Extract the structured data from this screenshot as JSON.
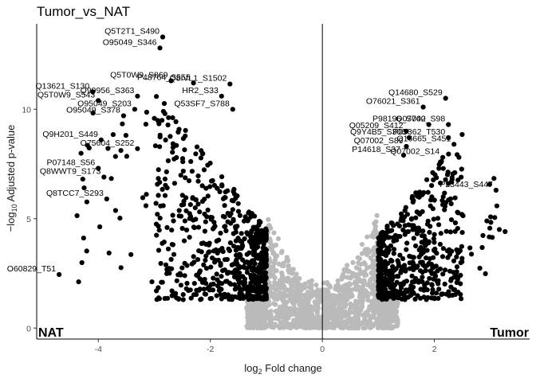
{
  "chart_data": {
    "type": "scatter",
    "title": "Tumor_vs_NAT",
    "xlabel": "log2 Fold change",
    "ylabel": "-log10 Adjusted p-value",
    "xlim": [
      -5.1,
      3.7
    ],
    "ylim": [
      -0.5,
      13.9
    ],
    "x_ticks": [
      -4,
      -2,
      0,
      2
    ],
    "x_tick_labels": [
      "-4",
      "-2",
      "0",
      "2"
    ],
    "y_ticks": [
      0,
      5,
      10
    ],
    "y_tick_labels": [
      "0",
      "5",
      "10"
    ],
    "grid": false,
    "vline_x": 0,
    "corner_labels": {
      "left": "NAT",
      "right": "Tumor"
    },
    "colors": {
      "significant": "#000000",
      "non_significant": "#bababa",
      "axis": "#000000"
    },
    "significance_cutoff": {
      "abs_log2fc": 1,
      "neg_log10_padj": 1.3
    },
    "labeled_points": [
      {
        "label": "Q5T2T1_S490",
        "x": -2.85,
        "y": 13.3
      },
      {
        "label": "O95049_S346",
        "x": -2.9,
        "y": 12.8
      },
      {
        "label": "Q5T0W9_S869",
        "x": -2.7,
        "y": 11.3
      },
      {
        "label": "P48764_S555",
        "x": -2.3,
        "y": 11.2
      },
      {
        "label": "Q8IVL1_S1502",
        "x": -1.65,
        "y": 11.15
      },
      {
        "label": "Q13621_S130",
        "x": -4.1,
        "y": 10.8
      },
      {
        "label": "Q99956_S363",
        "x": -3.3,
        "y": 10.6
      },
      {
        "label": "HR2_S33",
        "x": -1.8,
        "y": 10.6
      },
      {
        "label": "Q5T0W9_S543",
        "x": -4.0,
        "y": 10.4
      },
      {
        "label": "O95049_S203",
        "x": -3.35,
        "y": 10.0
      },
      {
        "label": "Q53SF7_S788",
        "x": -1.6,
        "y": 10.0
      },
      {
        "label": "O95049_S378",
        "x": -3.55,
        "y": 9.7
      },
      {
        "label": "Q9H201_S449",
        "x": -3.95,
        "y": 8.6
      },
      {
        "label": "O75604_S252",
        "x": -3.3,
        "y": 8.2
      },
      {
        "label": "P07148_S56",
        "x": -4.0,
        "y": 7.3
      },
      {
        "label": "Q8WWT9_S173",
        "x": -3.9,
        "y": 6.9
      },
      {
        "label": "Q8TCC7_S293",
        "x": -3.85,
        "y": 5.9
      },
      {
        "label": "O60829_T51",
        "x": -4.7,
        "y": 2.45
      },
      {
        "label": "Q14680_S529",
        "x": 2.2,
        "y": 10.5
      },
      {
        "label": "O76021_S361",
        "x": 1.8,
        "y": 10.1
      },
      {
        "label": "P98196_S740",
        "x": 1.9,
        "y": 9.3
      },
      {
        "label": "Q07002_S98",
        "x": 2.25,
        "y": 9.3
      },
      {
        "label": "Q05209_S412",
        "x": 1.5,
        "y": 9.0
      },
      {
        "label": "Q9Y4B5_S306",
        "x": 1.55,
        "y": 8.7
      },
      {
        "label": "P05362_T530",
        "x": 2.25,
        "y": 8.7
      },
      {
        "label": "Q07002_S89",
        "x": 1.5,
        "y": 8.3
      },
      {
        "label": "Q16665_S451",
        "x": 2.35,
        "y": 8.4
      },
      {
        "label": "P14618_S37",
        "x": 1.45,
        "y": 7.9
      },
      {
        "label": "Q07002_S14",
        "x": 2.15,
        "y": 7.8
      },
      {
        "label": "P23443_S447",
        "x": 3.1,
        "y": 6.3
      }
    ]
  }
}
